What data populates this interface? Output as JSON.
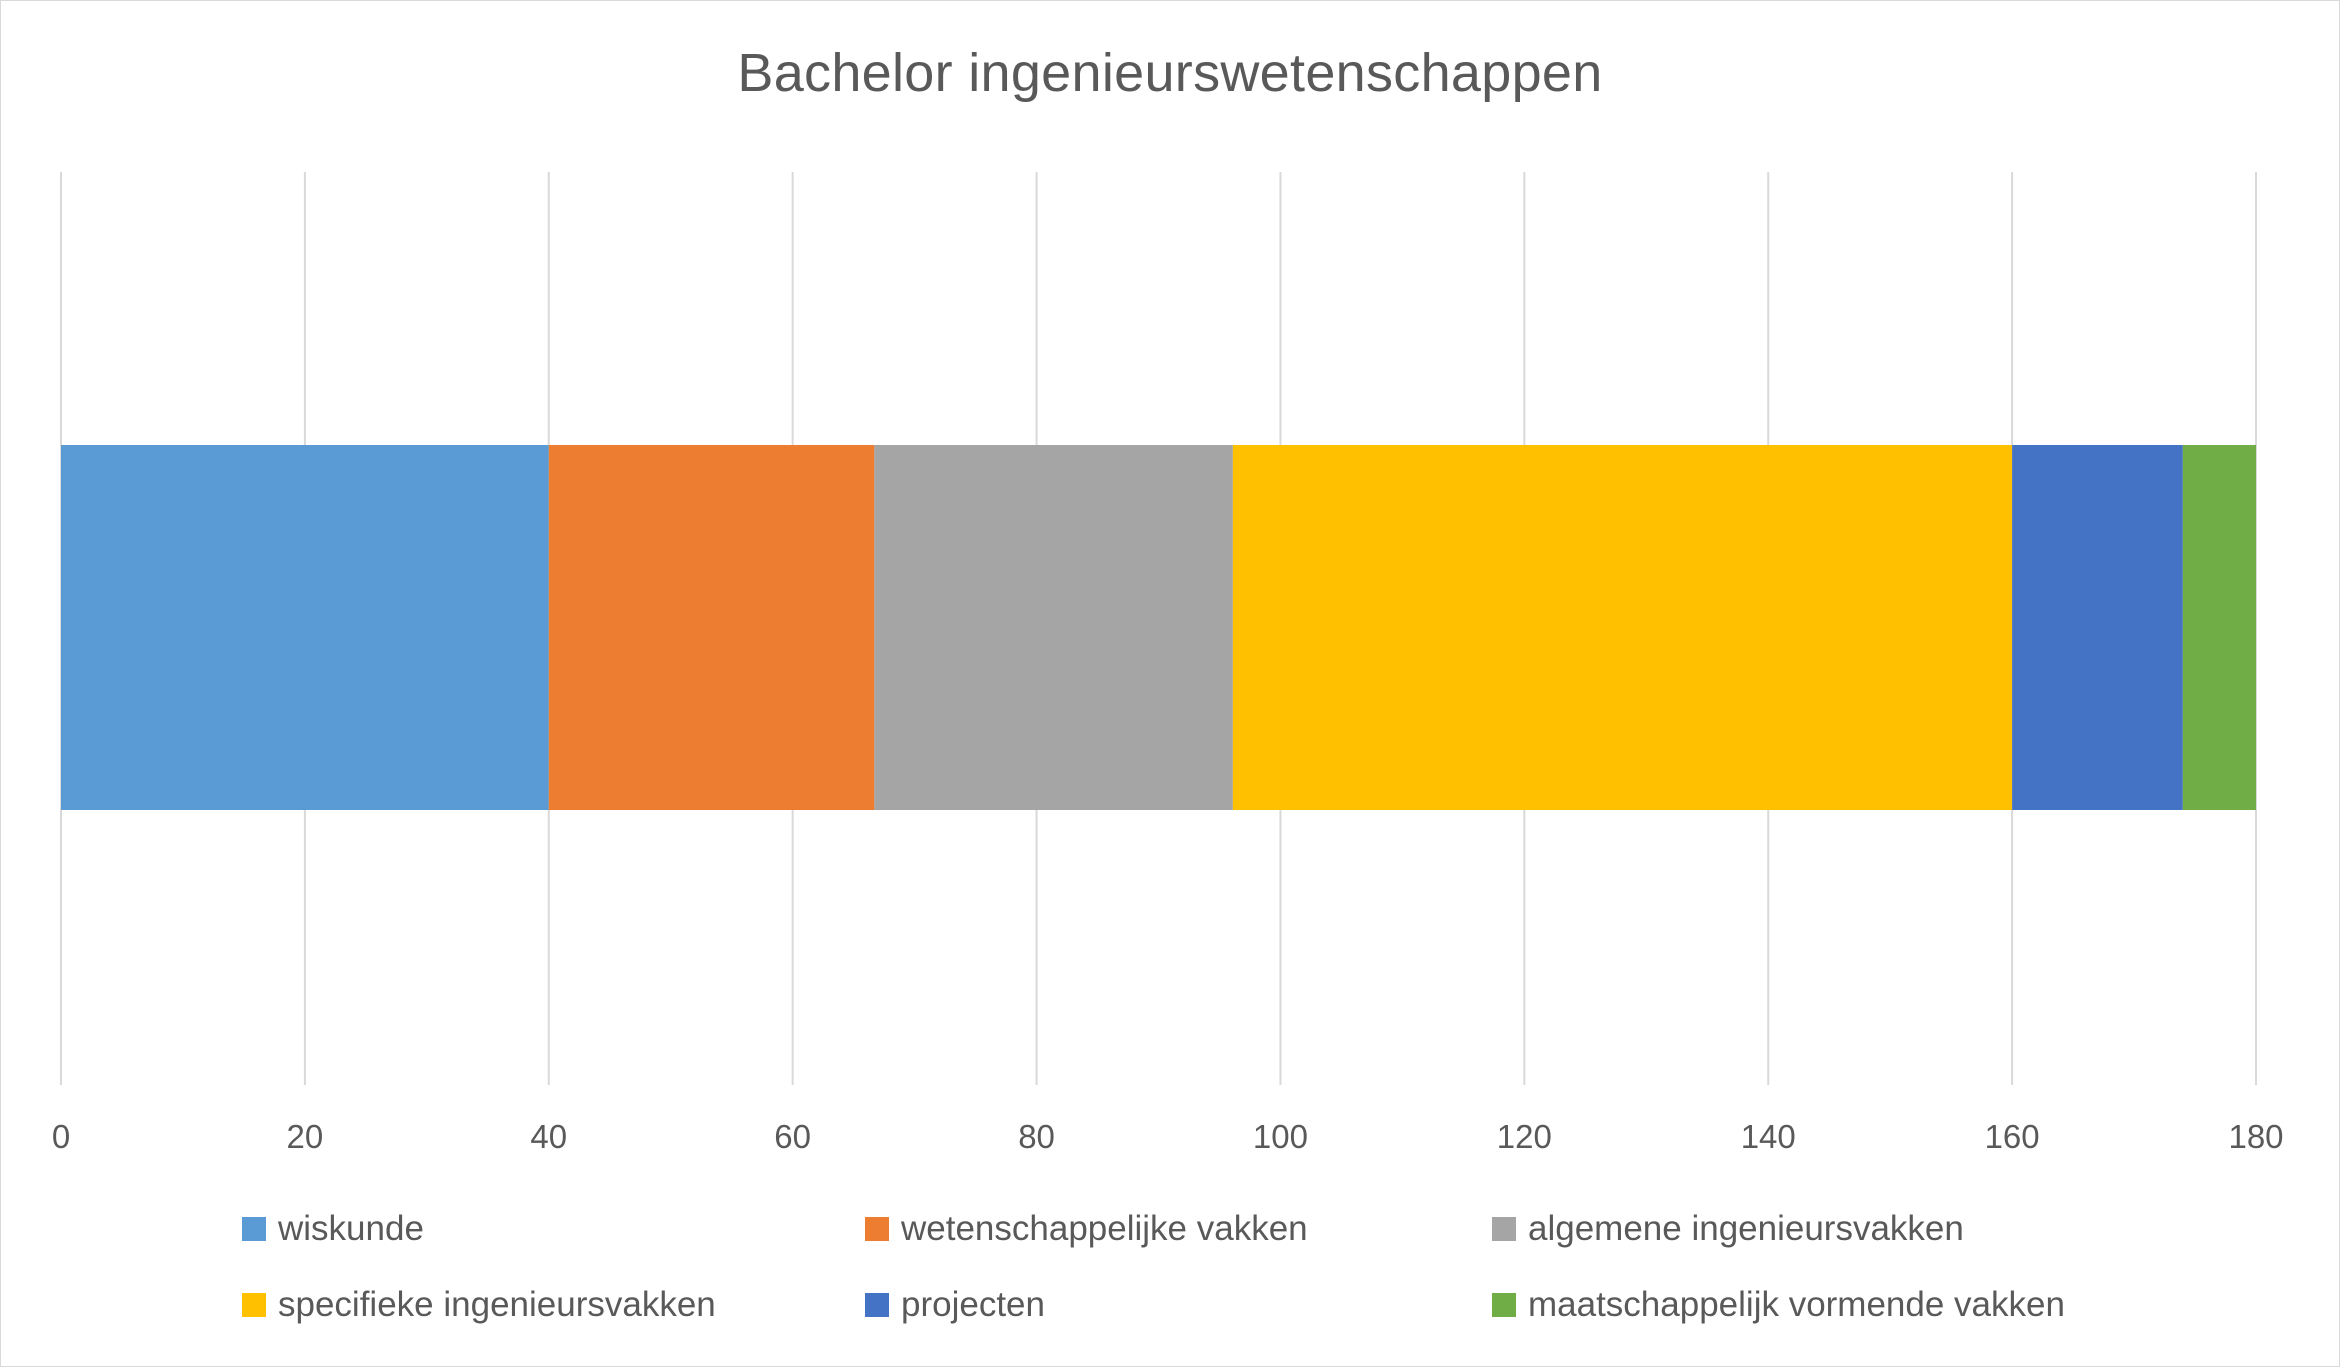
{
  "chart_data": {
    "type": "bar",
    "orientation": "horizontal",
    "stacked": true,
    "title": "Bachelor ingenieurswetenschappen",
    "xlabel": "",
    "ylabel": "",
    "xlim": [
      0,
      180
    ],
    "x_ticks": [
      "0",
      "20",
      "40",
      "60",
      "80",
      "100",
      "120",
      "140",
      "160",
      "180"
    ],
    "grid": "vertical",
    "legend_position": "bottom",
    "categories": [
      ""
    ],
    "series": [
      {
        "name": "wiskunde",
        "values": [
          40
        ],
        "color": "#5b9bd5"
      },
      {
        "name": "wetenschappelijke vakken",
        "values": [
          26.7
        ],
        "color": "#ed7d31"
      },
      {
        "name": "algemene ingenieursvakken",
        "values": [
          29.4
        ],
        "color": "#a5a5a5"
      },
      {
        "name": "specifieke ingenieursvakken",
        "values": [
          63.9
        ],
        "color": "#ffc000"
      },
      {
        "name": "projecten",
        "values": [
          14
        ],
        "color": "#4472c4"
      },
      {
        "name": "maatschappelijk vormende vakken",
        "values": [
          6
        ],
        "color": "#70ad47"
      }
    ]
  }
}
